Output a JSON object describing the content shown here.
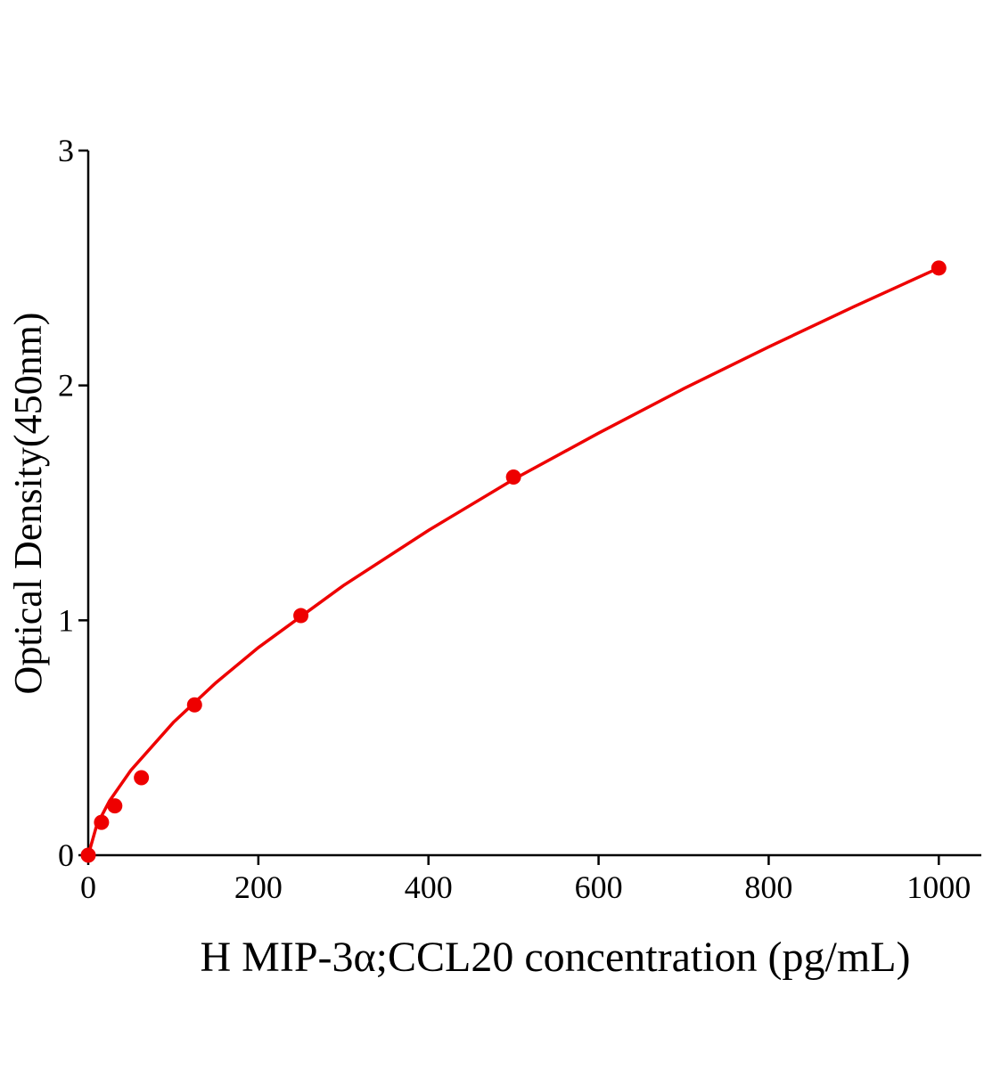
{
  "chart_data": {
    "type": "scatter",
    "xlabel": "H MIP-3α;CCL20 concentration (pg/mL)",
    "ylabel": "Optical Density(450nm)",
    "x": [
      0,
      15.6,
      31.25,
      62.5,
      125,
      250,
      500,
      1000
    ],
    "values": [
      0,
      0.14,
      0.21,
      0.33,
      0.64,
      1.02,
      1.61,
      2.5
    ],
    "color": "#ee0000",
    "curve": {
      "x": [
        0,
        10,
        25,
        50,
        100,
        150,
        200,
        300,
        400,
        500,
        600,
        700,
        800,
        900,
        1000
      ],
      "values": [
        0,
        0.128,
        0.231,
        0.361,
        0.565,
        0.734,
        0.884,
        1.148,
        1.383,
        1.6,
        1.797,
        1.986,
        2.164,
        2.335,
        2.5
      ]
    },
    "xlim": [
      0,
      1050
    ],
    "ylim": [
      0,
      3
    ],
    "xticks": [
      0,
      200,
      400,
      600,
      800,
      1000
    ],
    "yticks": [
      0,
      1,
      2,
      3
    ]
  }
}
